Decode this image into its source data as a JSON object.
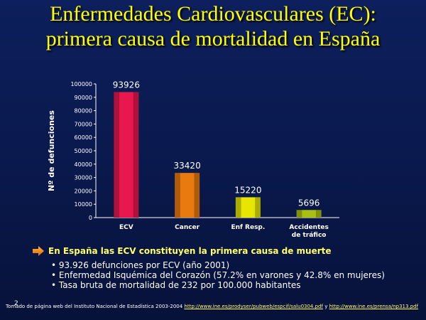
{
  "title_line1": "Enfermedades Cardiovasculares (EC):",
  "title_line2": "primera causa de mortalidad en España",
  "chart_data": {
    "type": "bar",
    "categories": [
      "ECV",
      "Cancer",
      "Enf Resp.",
      "Accidentes de tráfico"
    ],
    "category_lines": [
      [
        "ECV"
      ],
      [
        "Cancer"
      ],
      [
        "Enf Resp."
      ],
      [
        "Accidentes",
        "de tráfico"
      ]
    ],
    "values": [
      93926,
      33420,
      15220,
      5696
    ],
    "data_labels": [
      "93926",
      "33420",
      "15220",
      "5696"
    ],
    "ylabel": "Nº de defunciones",
    "ylim": [
      0,
      100000
    ],
    "yticks": [
      0,
      10000,
      20000,
      30000,
      40000,
      50000,
      60000,
      70000,
      80000,
      90000,
      100000
    ],
    "grid": false,
    "bar_colors": [
      "#e8174e",
      "#e87a10",
      "#e6e600",
      "#a8c010"
    ]
  },
  "headline": "En España las ECV constituyen la primera causa de muerte",
  "facts": [
    "93.926 defunciones por ECV (año 2001)",
    "Enfermedad Isquémica del Corazón (57.2% en varones y 42.8% en mujeres)",
    "Tasa bruta de mortalidad de 232 por 100.000 habitantes"
  ],
  "source_prefix": "Tomado de página web del Instituto Nacional de Estadística 2003-2004",
  "source_link1": "http://www.ine.es/prodyser/pubweb/espcif/salu0304.pdf",
  "source_and": "y",
  "source_link2": "http://www.ine.es/prensa/np313.pdf",
  "page_number": "2",
  "colors": {
    "title": "#ffff00",
    "headline": "#ffff66",
    "background": "#0b1c55"
  }
}
